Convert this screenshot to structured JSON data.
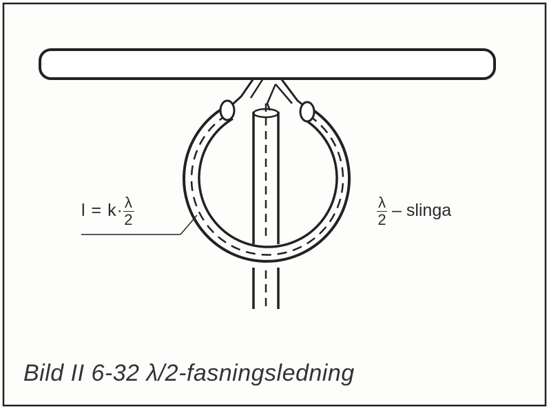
{
  "formula": {
    "lhs": "l",
    "eq": "=",
    "k": "k",
    "dot": "·",
    "frac_num": "λ",
    "frac_den": "2"
  },
  "loop_label": {
    "frac_num": "λ",
    "frac_den": "2",
    "dash": "–",
    "word": "slinga"
  },
  "caption": "Bild II 6-32  λ/2-fasningsledning",
  "colors": {
    "ink": "#2a2a2a",
    "paper": "#fdfdfb"
  }
}
